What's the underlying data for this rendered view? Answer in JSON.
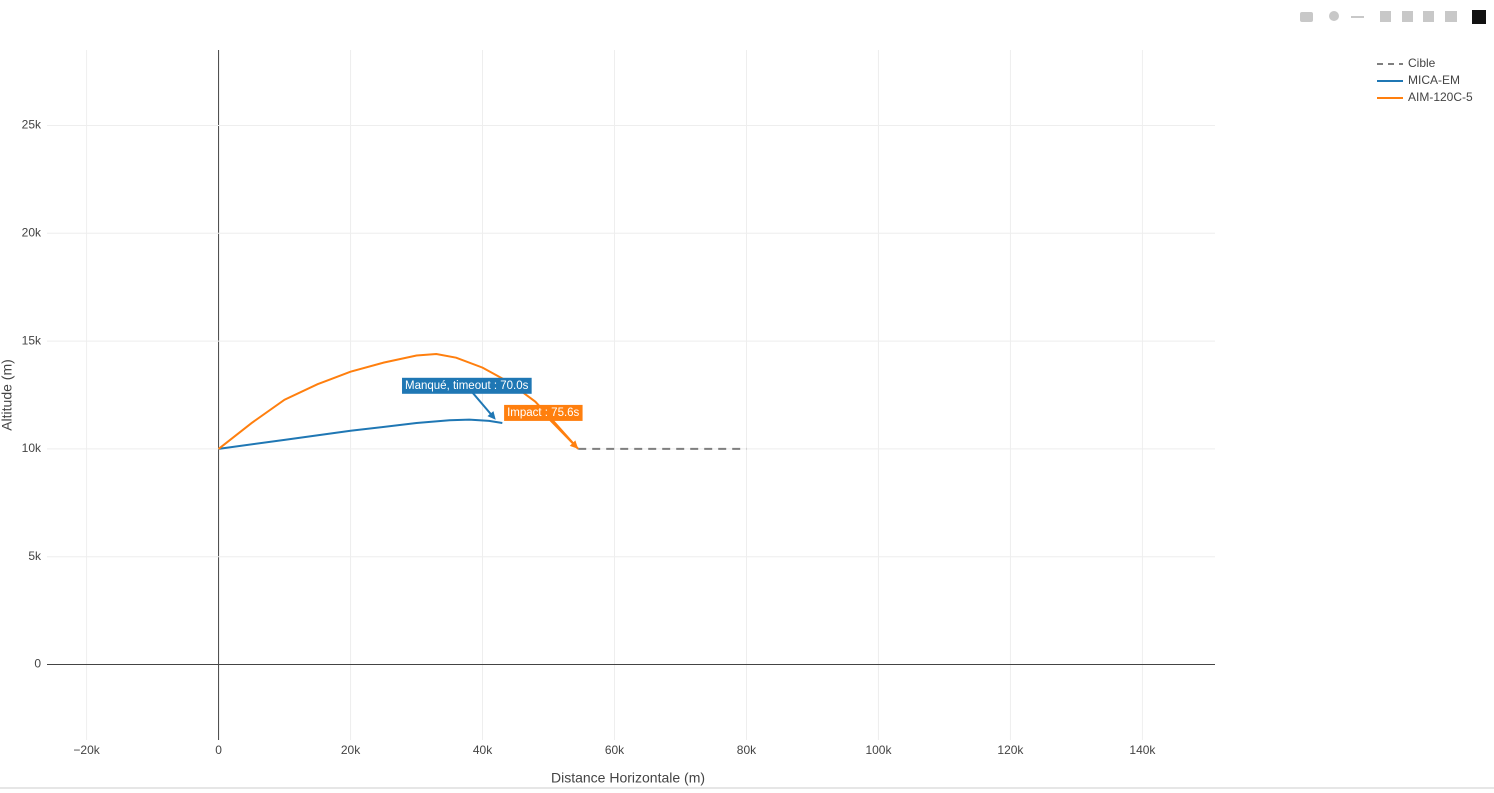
{
  "chart_data": {
    "type": "line",
    "x_label": "Distance Horizontale (m)",
    "y_label": "Altitude (m)",
    "xlim": [
      -26000,
      151000
    ],
    "ylim": [
      -3500,
      28500
    ],
    "xticks": [
      {
        "value": -20000,
        "label": "−20k"
      },
      0,
      {
        "value": 20000,
        "label": "20k"
      },
      {
        "value": 40000,
        "label": "40k"
      },
      {
        "value": 60000,
        "label": "60k"
      },
      {
        "value": 80000,
        "label": "80k"
      },
      {
        "value": 100000,
        "label": "100k"
      },
      {
        "value": 120000,
        "label": "120k"
      },
      {
        "value": 140000,
        "label": "140k"
      }
    ],
    "yticks": [
      0,
      {
        "value": 5000,
        "label": "5k"
      },
      {
        "value": 10000,
        "label": "10k"
      },
      {
        "value": 15000,
        "label": "15k"
      },
      {
        "value": 20000,
        "label": "20k"
      },
      {
        "value": 25000,
        "label": "25k"
      }
    ],
    "grid": true,
    "legend": "top-right",
    "series": [
      {
        "name": "Cible",
        "color": "#7f7f7f",
        "dash": true,
        "x": [
          54500,
          80000
        ],
        "y": [
          10000,
          10000
        ]
      },
      {
        "name": "MICA-EM",
        "color": "#1f77b4",
        "x": [
          0,
          10000,
          20000,
          30000,
          35000,
          38000,
          41000,
          43000
        ],
        "y": [
          10000,
          10420,
          10840,
          11200,
          11330,
          11360,
          11300,
          11200
        ]
      },
      {
        "name": "AIM-120C-5",
        "color": "#ff7f0e",
        "x": [
          0,
          5000,
          10000,
          15000,
          20000,
          25000,
          30000,
          33000,
          36000,
          40000,
          44000,
          48000,
          51000,
          54500
        ],
        "y": [
          10000,
          11200,
          12280,
          13000,
          13580,
          14000,
          14330,
          14400,
          14230,
          13770,
          13100,
          12190,
          11200,
          10000
        ]
      }
    ],
    "annotations": [
      {
        "text": "Manqué, timeout : 70.0s",
        "x": 42000,
        "y": 11350,
        "color": "#1f77b4"
      },
      {
        "text": "Impact : 75.6s",
        "x": 54500,
        "y": 10000,
        "color": "#ff7f0e"
      }
    ]
  }
}
